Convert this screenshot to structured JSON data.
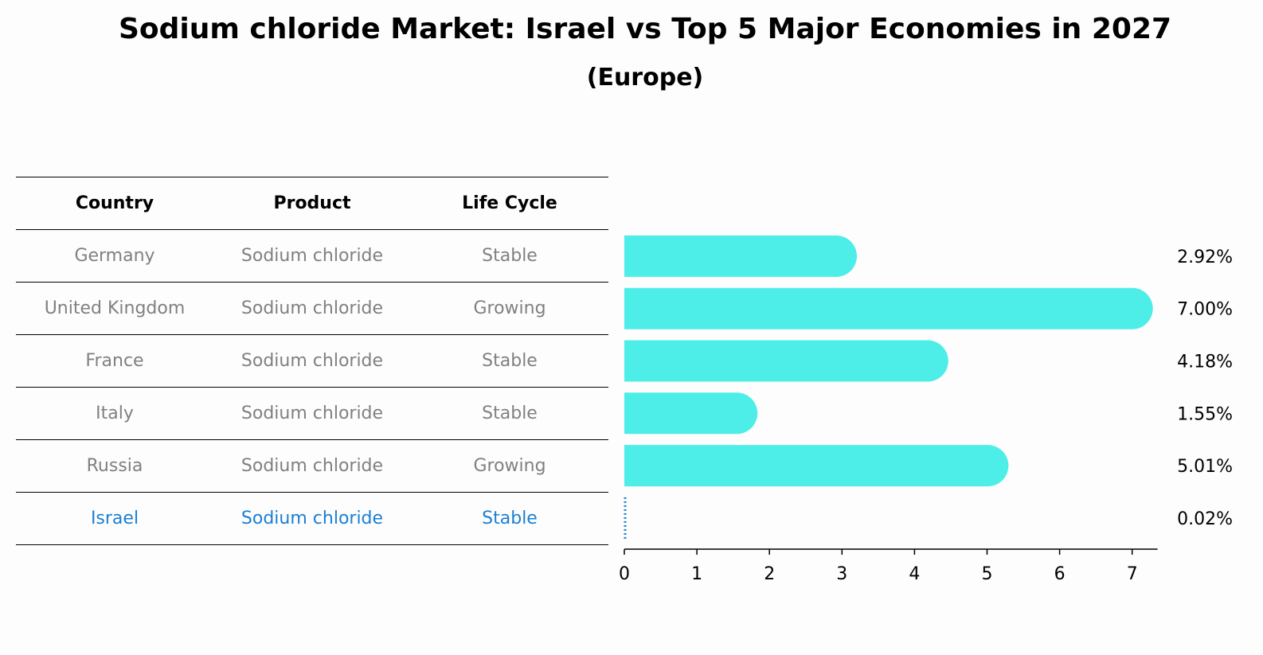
{
  "chart_data": {
    "type": "bar",
    "title": "Sodium chloride Market: Israel vs Top 5 Major Economies in 2027",
    "subtitle": "(Europe)",
    "table": {
      "columns": [
        "Country",
        "Product",
        "Life Cycle"
      ],
      "rows": [
        [
          "Germany",
          "Sodium chloride",
          "Stable"
        ],
        [
          "United Kingdom",
          "Sodium chloride",
          "Growing"
        ],
        [
          "France",
          "Sodium chloride",
          "Stable"
        ],
        [
          "Italy",
          "Sodium chloride",
          "Stable"
        ],
        [
          "Russia",
          "Sodium chloride",
          "Growing"
        ],
        [
          "Israel",
          "Sodium chloride",
          "Stable"
        ]
      ]
    },
    "categories": [
      "Germany",
      "United Kingdom",
      "France",
      "Italy",
      "Russia",
      "Israel"
    ],
    "values": [
      2.92,
      7.0,
      4.18,
      1.55,
      5.01,
      0.02
    ],
    "value_labels": [
      "2.92%",
      "7.00%",
      "4.18%",
      "1.55%",
      "5.01%",
      "0.02%"
    ],
    "xlim": [
      0,
      7.35
    ],
    "xticks": [
      "0",
      "1",
      "2",
      "3",
      "4",
      "5",
      "6",
      "7"
    ],
    "highlight": "Israel",
    "colors": {
      "bar": "#4eeee8",
      "highlight": "#1a7fd4",
      "muted_text": "#808080"
    },
    "grid": false
  }
}
